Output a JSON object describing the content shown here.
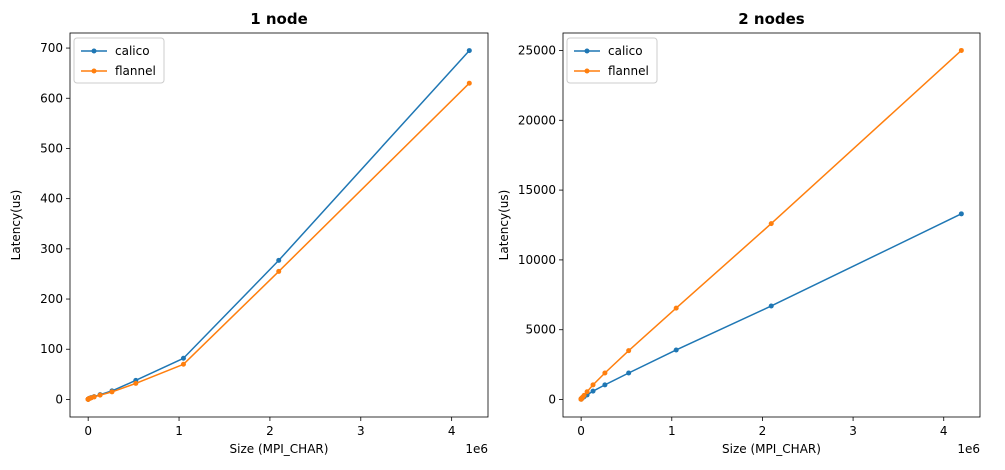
{
  "chart_data": [
    {
      "type": "line",
      "title": "1 node",
      "xlabel": "Size (MPI_CHAR)",
      "ylabel": "Latency(us)",
      "x_offset_label": "1e6",
      "xlim": [
        -200000,
        4400000
      ],
      "ylim": [
        -35,
        730
      ],
      "x_ticks": [
        0,
        1000000,
        2000000,
        3000000,
        4000000
      ],
      "x_tick_labels": [
        "0",
        "1",
        "2",
        "3",
        "4"
      ],
      "y_ticks": [
        0,
        100,
        200,
        300,
        400,
        500,
        600,
        700
      ],
      "y_tick_labels": [
        "0",
        "100",
        "200",
        "300",
        "400",
        "500",
        "600",
        "700"
      ],
      "legend_position": "upper-left",
      "x": [
        1,
        2,
        4,
        8,
        16,
        32,
        64,
        128,
        256,
        512,
        1024,
        2048,
        4096,
        8192,
        16384,
        32768,
        65536,
        131072,
        262144,
        524288,
        1048576,
        2097152,
        4194304
      ],
      "series": [
        {
          "name": "calico",
          "color": "#1f77b4",
          "values": [
            0.3,
            0.3,
            0.3,
            0.3,
            0.3,
            0.3,
            0.4,
            0.4,
            0.4,
            0.5,
            0.6,
            0.8,
            1.0,
            1.5,
            2.3,
            3.5,
            5.5,
            9.5,
            17,
            38,
            82,
            277,
            695
          ]
        },
        {
          "name": "flannel",
          "color": "#ff7f0e",
          "values": [
            0.3,
            0.3,
            0.3,
            0.3,
            0.3,
            0.3,
            0.4,
            0.4,
            0.4,
            0.5,
            0.6,
            0.8,
            1.0,
            1.4,
            2.1,
            3.2,
            5.0,
            8.5,
            15,
            32,
            70,
            255,
            630
          ]
        }
      ]
    },
    {
      "type": "line",
      "title": "2 nodes",
      "xlabel": "Size (MPI_CHAR)",
      "ylabel": "Latency(us)",
      "x_offset_label": "1e6",
      "xlim": [
        -200000,
        4400000
      ],
      "ylim": [
        -1250,
        26250
      ],
      "x_ticks": [
        0,
        1000000,
        2000000,
        3000000,
        4000000
      ],
      "x_tick_labels": [
        "0",
        "1",
        "2",
        "3",
        "4"
      ],
      "y_ticks": [
        0,
        5000,
        10000,
        15000,
        20000,
        25000
      ],
      "y_tick_labels": [
        "0",
        "5000",
        "10000",
        "15000",
        "20000",
        "25000"
      ],
      "legend_position": "upper-left",
      "x": [
        1,
        2,
        4,
        8,
        16,
        32,
        64,
        128,
        256,
        512,
        1024,
        2048,
        4096,
        8192,
        16384,
        32768,
        65536,
        131072,
        262144,
        524288,
        1048576,
        2097152,
        4194304
      ],
      "series": [
        {
          "name": "calico",
          "color": "#1f77b4",
          "values": [
            30,
            30,
            30,
            30,
            30,
            31,
            32,
            33,
            35,
            38,
            45,
            55,
            70,
            95,
            130,
            200,
            330,
            600,
            1050,
            1900,
            3550,
            6700,
            13300
          ]
        },
        {
          "name": "flannel",
          "color": "#ff7f0e",
          "values": [
            30,
            30,
            30,
            30,
            30,
            31,
            32,
            33,
            35,
            38,
            45,
            55,
            75,
            110,
            170,
            300,
            560,
            1050,
            1900,
            3500,
            6550,
            12600,
            25000
          ]
        }
      ]
    }
  ]
}
